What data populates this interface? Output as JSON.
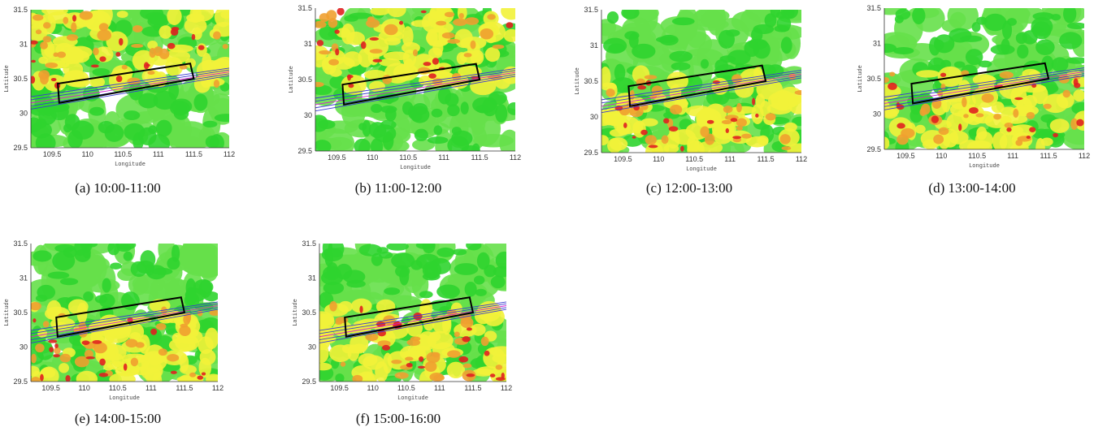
{
  "panels": [
    {
      "id": "a",
      "caption": "(a) 10:00-11:00"
    },
    {
      "id": "b",
      "caption": "(b) 11:00-12:00"
    },
    {
      "id": "c",
      "caption": "(c) 12:00-13:00"
    },
    {
      "id": "d",
      "caption": "(d) 13:00-14:00"
    },
    {
      "id": "e",
      "caption": "(e) 14:00-15:00"
    },
    {
      "id": "f",
      "caption": "(f) 15:00-16:00"
    }
  ],
  "axes": {
    "xlabel": "Longitude",
    "ylabel": "Latitude",
    "x_ticks": [
      "109.5",
      "110",
      "110.5",
      "111",
      "111.5",
      "112"
    ],
    "y_ticks": [
      "29.5",
      "30",
      "30.5",
      "31",
      "31.5"
    ],
    "xlim": [
      109.2,
      112
    ],
    "ylim": [
      29.5,
      31.5
    ]
  },
  "colors": {
    "light_green": "#66e04a",
    "green": "#2fd42f",
    "yellow": "#f2f23a",
    "orange": "#f0a030",
    "red": "#e02020",
    "box": "#000000",
    "track_blue": "#3a3ad0",
    "track_magenta": "#d020d0"
  }
}
